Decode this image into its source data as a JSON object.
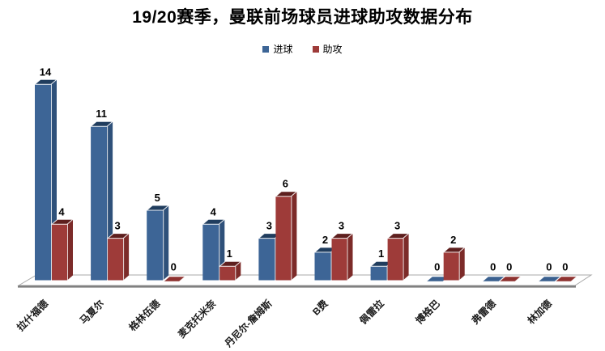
{
  "chart_data": {
    "type": "bar",
    "style": "3d-clustered-column",
    "title": "19/20赛季，曼联前场球员进球助攻数据分布",
    "categories": [
      "拉什福德",
      "马夏尔",
      "格林伍德",
      "麦克托米奈",
      "丹尼尔-詹姆斯",
      "B费",
      "佩雷拉",
      "博格巴",
      "弗雷德",
      "林加德"
    ],
    "series": [
      {
        "name": "进球",
        "values": [
          14,
          11,
          5,
          4,
          3,
          2,
          1,
          0,
          0,
          0
        ],
        "colors": {
          "front": "#3D6596",
          "side": "#2F517A",
          "top": "#203D5E",
          "flat": "#3A608F"
        }
      },
      {
        "name": "助攻",
        "values": [
          4,
          3,
          0,
          1,
          6,
          3,
          3,
          2,
          0,
          0
        ],
        "colors": {
          "front": "#9E3B39",
          "side": "#7C2B29",
          "top": "#5E1F1E",
          "flat": "#8E3230"
        }
      }
    ],
    "value_labels": true,
    "ylim": [
      0,
      14
    ],
    "legend_position": "top",
    "grid": false,
    "xlabel": "",
    "ylabel": ""
  },
  "floor": {
    "line_color": "#a8a8a8",
    "front_edge_color": "#808080"
  }
}
